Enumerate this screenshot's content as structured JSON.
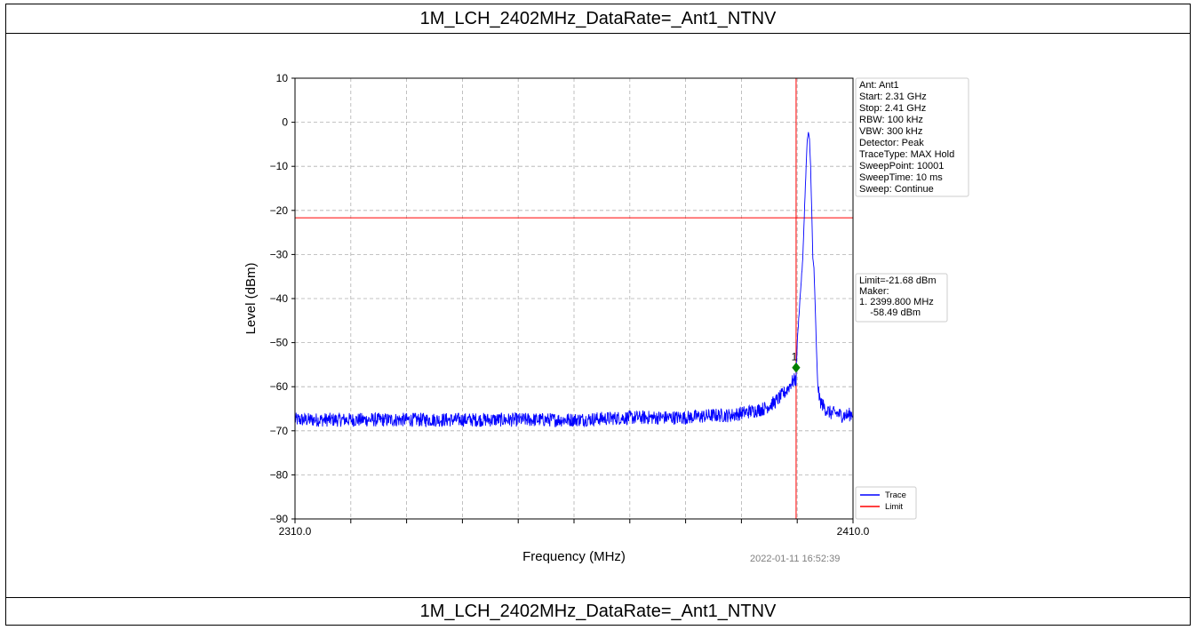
{
  "header": {
    "title": "1M_LCH_2402MHz_DataRate=_Ant1_NTNV"
  },
  "footer": {
    "title": "1M_LCH_2402MHz_DataRate=_Ant1_NTNV"
  },
  "timestamp": "2022-01-11 16:52:39",
  "settings_box": {
    "lines": [
      "Ant: Ant1",
      "Start: 2.31 GHz",
      "Stop: 2.41 GHz",
      "RBW: 100 kHz",
      "VBW: 300 kHz",
      "Detector: Peak",
      "TraceType: MAX Hold",
      "SweepPoint: 10001",
      "SweepTime: 10 ms",
      "Sweep: Continue"
    ]
  },
  "marker_box": {
    "lines": [
      "Limit=-21.68 dBm",
      "Maker:",
      "1. 2399.800 MHz",
      "    -58.49 dBm"
    ]
  },
  "chart_data": {
    "type": "line",
    "xlabel": "Frequency (MHz)",
    "ylabel": "Level (dBm)",
    "xlim": [
      2310.0,
      2410.0
    ],
    "ylim": [
      -90,
      10
    ],
    "x_tick_labels": [
      "2310.0",
      "2410.0"
    ],
    "y_ticks": [
      10,
      0,
      -10,
      -20,
      -30,
      -40,
      -50,
      -60,
      -70,
      -80,
      -90
    ],
    "y_tick_labels": [
      "10",
      "0",
      "−10",
      "−20",
      "−30",
      "−40",
      "−50",
      "−60",
      "−70",
      "−80",
      "−90"
    ],
    "x_minor_ticks": [
      2310,
      2320,
      2330,
      2340,
      2350,
      2360,
      2370,
      2380,
      2390,
      2400,
      2410
    ],
    "grid": true,
    "legend": {
      "placement": "lower-right",
      "entries": [
        "Trace",
        "Limit"
      ]
    },
    "colors": {
      "trace": "#0000ff",
      "limit": "#ff0000",
      "marker": "#008000"
    },
    "series": [
      {
        "name": "Trace",
        "x": [
          2310,
          2320,
          2330,
          2340,
          2350,
          2360,
          2370,
          2380,
          2385,
          2388,
          2390,
          2392,
          2394,
          2396,
          2398,
          2399,
          2399.5,
          2399.8,
          2400,
          2400.5,
          2401,
          2401.3,
          2401.6,
          2401.8,
          2402,
          2402.2,
          2402.4,
          2402.6,
          2402.8,
          2403,
          2403.3,
          2403.6,
          2404,
          2404.5,
          2405,
          2406,
          2407,
          2408,
          2409,
          2410
        ],
        "y": [
          -67.5,
          -67.5,
          -67.5,
          -67.5,
          -67.5,
          -67.5,
          -67,
          -67,
          -66.5,
          -66.5,
          -66,
          -65.5,
          -65,
          -63.5,
          -61,
          -59,
          -58.5,
          -58.49,
          -50,
          -40,
          -31,
          -20,
          -10,
          -4,
          -2.5,
          -4,
          -10,
          -20,
          -31,
          -33,
          -45,
          -58,
          -63,
          -64,
          -65,
          -66,
          -66,
          -66.5,
          -66.5,
          -66
        ]
      }
    ],
    "limit": {
      "name": "Limit",
      "value": -21.68
    },
    "marker": {
      "label": "1",
      "x": 2399.8,
      "y": -58.49
    }
  }
}
